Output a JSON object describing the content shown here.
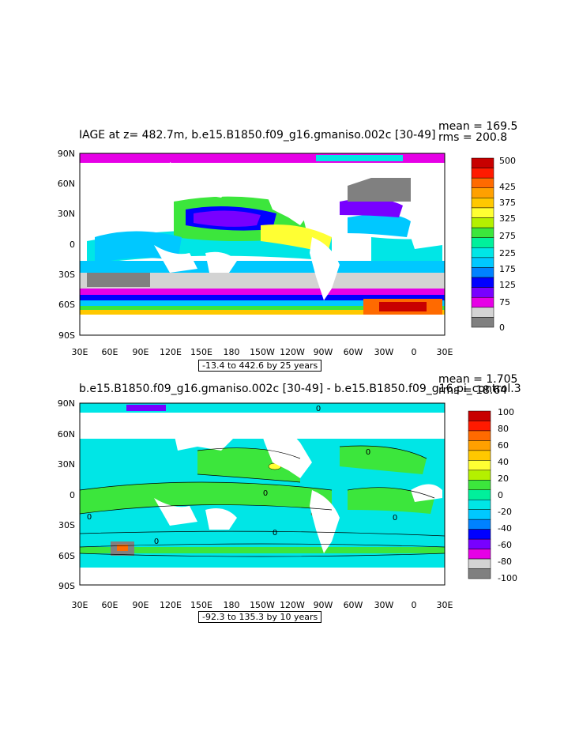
{
  "panels": [
    {
      "title": "IAGE at z= 482.7m, b.e15.B1850.f09_g16.gmaniso.002c [30-49]",
      "mean": "mean = 169.5",
      "rms": "rms = 200.8",
      "caption": "-13.4 to 442.6 by 25 years",
      "lat_labels": [
        "90N",
        "60N",
        "30N",
        "0",
        "30S",
        "60S",
        "90S"
      ],
      "lon_labels": [
        "30E",
        "60E",
        "90E",
        "120E",
        "150E",
        "180",
        "150W",
        "120W",
        "90W",
        "60W",
        "30W",
        "0",
        "30E"
      ],
      "colorbar": {
        "labels": [
          "500",
          "425",
          "375",
          "325",
          "275",
          "225",
          "175",
          "125",
          "75",
          "0"
        ],
        "colors": [
          "#c80000",
          "#ff1a00",
          "#ff6a00",
          "#ffa000",
          "#ffc800",
          "#ffff33",
          "#b4f000",
          "#3ce63c",
          "#00f09b",
          "#00e6e6",
          "#00c8ff",
          "#0082ff",
          "#0000ff",
          "#7800ff",
          "#e600e6",
          "#d3d3d3",
          "#808080"
        ]
      },
      "land_mask_color": "#ffffff"
    },
    {
      "title": "b.e15.B1850.f09_g16.gmaniso.002c [30-49] - b.e15.B1850.f09_g16.pi_control.3",
      "mean": "mean = 1.705",
      "rms": "rms = 18.64",
      "caption": "-92.3 to 135.3 by 10 years",
      "lat_labels": [
        "90N",
        "60N",
        "30N",
        "0",
        "30S",
        "60S",
        "90S"
      ],
      "lon_labels": [
        "30E",
        "60E",
        "90E",
        "120E",
        "150E",
        "180",
        "150W",
        "120W",
        "90W",
        "60W",
        "30W",
        "0",
        "30E"
      ],
      "colorbar": {
        "labels": [
          "100",
          "80",
          "60",
          "40",
          "20",
          "0",
          "-20",
          "-40",
          "-60",
          "-80",
          "-100"
        ],
        "colors": [
          "#c80000",
          "#ff1a00",
          "#ff6a00",
          "#ffa000",
          "#ffc800",
          "#ffff33",
          "#b4f000",
          "#3ce63c",
          "#00f09b",
          "#00e6e6",
          "#00c8ff",
          "#0082ff",
          "#0000ff",
          "#7800ff",
          "#e600e6",
          "#d3d3d3",
          "#808080"
        ]
      },
      "contour_zero_labels": [
        "0",
        "0",
        "0",
        "0",
        "0",
        "0",
        "0"
      ]
    }
  ]
}
